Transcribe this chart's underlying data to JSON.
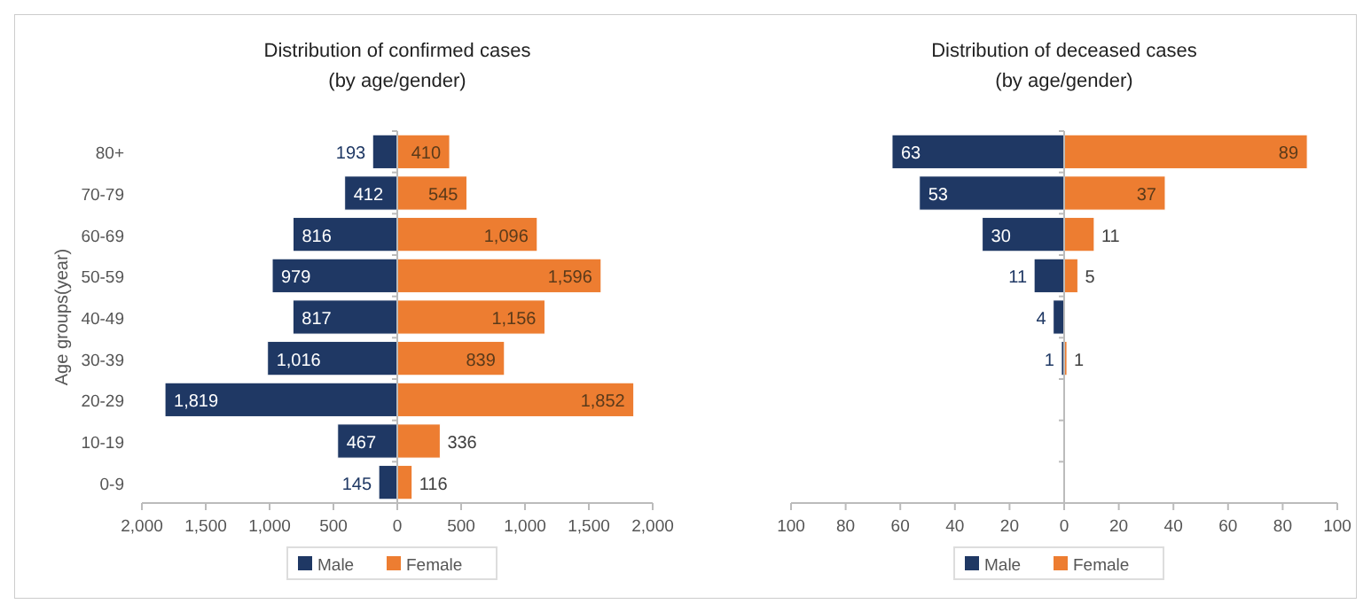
{
  "chart_data": [
    {
      "type": "bar",
      "orientation": "horizontal",
      "title": "Distribution of confirmed cases",
      "subtitle": "(by age/gender)",
      "ylabel": "Age groups(year)",
      "categories": [
        "80+",
        "70-79",
        "60-69",
        "50-59",
        "40-49",
        "30-39",
        "20-29",
        "10-19",
        "0-9"
      ],
      "series": [
        {
          "name": "Male",
          "color": "#1f3864",
          "values": [
            193,
            412,
            816,
            979,
            817,
            1016,
            1819,
            467,
            145
          ],
          "base": [
            -193,
            -412,
            -816,
            -979,
            -817,
            -1016,
            -1819,
            -467,
            -145
          ],
          "value_labels": [
            "193",
            "412",
            "816",
            "979",
            "817",
            "1,016",
            "1,819",
            "467",
            "145"
          ]
        },
        {
          "name": "Female",
          "color": "#ed7d31",
          "values": [
            410,
            545,
            1096,
            1596,
            1156,
            839,
            1852,
            336,
            116
          ],
          "value_labels": [
            "410",
            "545",
            "1,096",
            "1,596",
            "1,156",
            "839",
            "1,852",
            "336",
            "116"
          ]
        }
      ],
      "xlim": [
        -2000,
        2000
      ],
      "xticks": [
        {
          "value": -2000,
          "label": "2,000"
        },
        {
          "value": -1500,
          "label": "1,500"
        },
        {
          "value": -1000,
          "label": "1,000"
        },
        {
          "value": -500,
          "label": "500"
        },
        0,
        500,
        {
          "value": 1000,
          "label": "1,000"
        },
        {
          "value": 1500,
          "label": "1,500"
        },
        {
          "value": 2000,
          "label": "2,000"
        }
      ],
      "legend": "bottom"
    },
    {
      "type": "bar",
      "orientation": "horizontal",
      "title": "Distribution of deceased cases",
      "subtitle": "(by age/gender)",
      "categories": [
        null,
        null,
        null,
        null,
        null,
        null,
        null,
        null,
        null
      ],
      "series": [
        {
          "name": "Male",
          "color": "#1f3864",
          "values": [
            63,
            53,
            30,
            11,
            4,
            1,
            null,
            null,
            null
          ],
          "base": [
            -63,
            -53,
            -30,
            -11,
            -4,
            -1,
            null,
            null,
            null
          ],
          "value_labels": [
            "63",
            "53",
            "30",
            "11",
            "4",
            "1",
            null,
            null,
            null
          ]
        },
        {
          "name": "Female",
          "color": "#ed7d31",
          "values": [
            89,
            37,
            11,
            5,
            null,
            1,
            null,
            null,
            null
          ],
          "value_labels": [
            "89",
            "37",
            "11",
            "5",
            null,
            "1",
            null,
            null,
            null
          ]
        }
      ],
      "xlim": [
        -100,
        100
      ],
      "xticks": [
        {
          "value": -100,
          "label": "100"
        },
        {
          "value": -80,
          "label": "80"
        },
        {
          "value": -60,
          "label": "60"
        },
        {
          "value": -40,
          "label": "40"
        },
        {
          "value": -20,
          "label": "20"
        },
        0,
        20,
        40,
        60,
        80,
        100
      ],
      "legend": "bottom"
    }
  ]
}
